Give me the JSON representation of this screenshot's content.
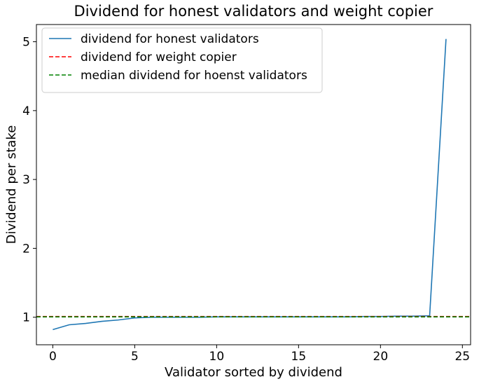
{
  "chart_data": {
    "type": "line",
    "title": "Dividend for honest validators and weight copier",
    "xlabel": "Validator sorted by dividend",
    "ylabel": "Dividend per stake",
    "xlim": [
      -1,
      25.5
    ],
    "ylim": [
      0.6,
      5.25
    ],
    "xticks": [
      0,
      5,
      10,
      15,
      20,
      25
    ],
    "yticks": [
      1,
      2,
      3,
      4,
      5
    ],
    "grid": false,
    "legend_position": "top-left",
    "series": [
      {
        "name": "dividend for honest validators",
        "color": "#1f77b4",
        "style": "solid",
        "x": [
          0,
          1,
          2,
          3,
          4,
          5,
          6,
          7,
          8,
          9,
          10,
          11,
          12,
          13,
          14,
          15,
          16,
          17,
          18,
          19,
          20,
          21,
          22,
          23,
          24
        ],
        "values": [
          0.82,
          0.89,
          0.91,
          0.94,
          0.96,
          0.99,
          1.0,
          1.0,
          1.0,
          1.0,
          1.005,
          1.005,
          1.005,
          1.005,
          1.005,
          1.005,
          1.005,
          1.005,
          1.005,
          1.01,
          1.01,
          1.015,
          1.015,
          1.02,
          5.04
        ]
      },
      {
        "name": "dividend for weight copier",
        "color": "#ff0000",
        "style": "dashed",
        "constant": 1.01
      },
      {
        "name": "median dividend for hoenst validators",
        "color": "#008000",
        "style": "dashed",
        "constant": 1.005
      }
    ]
  }
}
